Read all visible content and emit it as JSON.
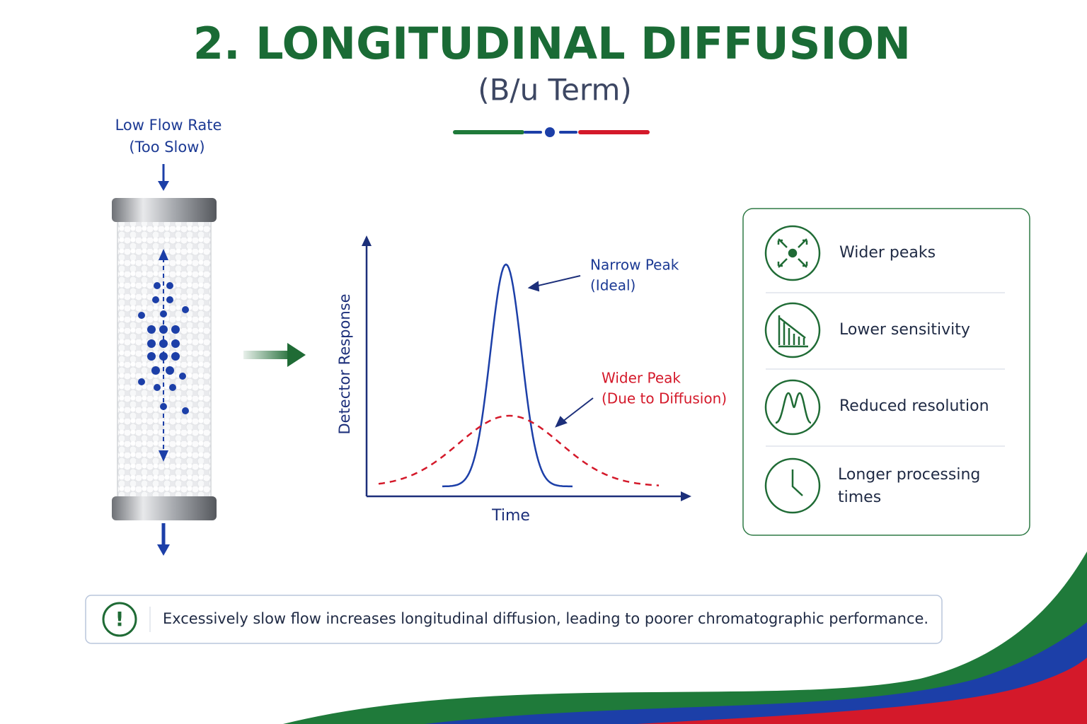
{
  "header": {
    "title": "2. LONGITUDINAL DIFFUSION",
    "subtitle": "(B/u Term)"
  },
  "column": {
    "label_lines": [
      "Low Flow Rate",
      "(Too Slow)"
    ]
  },
  "graph": {
    "y_axis_label": "Detector Response",
    "x_axis_label": "Time",
    "narrow_peak_lines": [
      "Narrow Peak",
      "(Ideal)"
    ],
    "wide_peak_lines": [
      "Wider Peak",
      "(Due to Diffusion)"
    ]
  },
  "effects": {
    "items": [
      "Wider peaks",
      "Lower sensitivity",
      "Reduced resolution",
      "Longer processing times"
    ]
  },
  "note": {
    "icon": "!",
    "text": "Excessively slow flow increases longitudinal diffusion, leading to poorer chromatographic performance."
  }
}
